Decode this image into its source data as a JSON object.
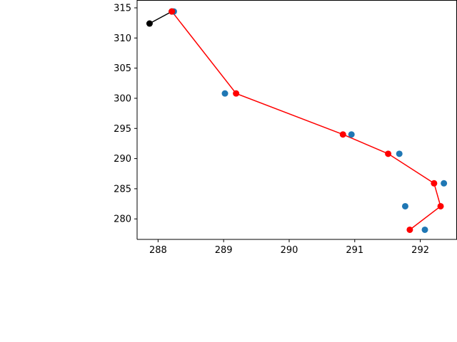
{
  "chart_data": {
    "type": "scatter",
    "xlim": [
      287.68,
      292.56
    ],
    "ylim": [
      276.6,
      316.3
    ],
    "x_ticks": [
      288,
      289,
      290,
      291,
      292
    ],
    "y_ticks": [
      280,
      285,
      290,
      295,
      300,
      305,
      310,
      315
    ],
    "grid": false,
    "series": [
      {
        "kind": "points",
        "color": "#1f77b4",
        "x": [
          288.24,
          289.02,
          290.95,
          291.68,
          292.36,
          291.77,
          292.07
        ],
        "y": [
          314.4,
          300.8,
          294.0,
          290.8,
          285.9,
          282.1,
          278.2
        ]
      },
      {
        "kind": "line-markers",
        "color": "#000000",
        "x": [
          287.87,
          288.21
        ],
        "y": [
          312.4,
          314.4
        ]
      },
      {
        "kind": "line-markers",
        "color": "#ff0000",
        "x": [
          288.21,
          289.19,
          290.82,
          291.51,
          292.21,
          292.31,
          291.84
        ],
        "y": [
          314.4,
          300.8,
          294.0,
          290.8,
          285.9,
          282.1,
          278.2
        ]
      }
    ]
  }
}
